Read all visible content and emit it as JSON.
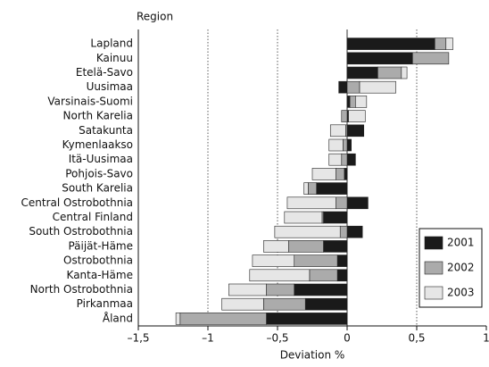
{
  "chart_data": {
    "type": "stacked-barh",
    "ylabel": "Region",
    "xlabel": "Deviation %",
    "categories": [
      "Lapland",
      "Kainuu",
      "Etelä-Savo",
      "Uusimaa",
      "Varsinais-Suomi",
      "North Karelia",
      "Satakunta",
      "Kymenlaakso",
      "Itä-Uusimaa",
      "Pohjois-Savo",
      "South Karelia",
      "Central Ostrobothnia",
      "Central Finland",
      "South Ostrobothnia",
      "Päijät-Häme",
      "Ostrobothnia",
      "Kanta-Häme",
      "North Ostrobothnia",
      "Pirkanmaa",
      "Åland"
    ],
    "series": [
      {
        "name": "2001",
        "color": "#1a1a1a",
        "values": [
          0.63,
          0.47,
          0.22,
          -0.06,
          0.02,
          0.01,
          0.12,
          0.03,
          0.06,
          -0.02,
          -0.22,
          0.15,
          -0.17,
          0.11,
          -0.17,
          -0.07,
          -0.07,
          -0.38,
          -0.3,
          -0.58
        ]
      },
      {
        "name": "2002",
        "color": "#ababab",
        "values": [
          0.08,
          0.26,
          0.17,
          0.09,
          0.04,
          -0.04,
          -0.01,
          -0.03,
          -0.04,
          -0.06,
          -0.06,
          -0.08,
          -0.01,
          -0.05,
          -0.25,
          -0.31,
          -0.2,
          -0.2,
          -0.3,
          -0.62
        ]
      },
      {
        "name": "2003",
        "color": "#e6e6e6",
        "values": [
          0.05,
          0.0,
          0.04,
          0.26,
          0.08,
          0.12,
          -0.11,
          -0.1,
          -0.09,
          -0.17,
          -0.03,
          -0.35,
          -0.27,
          -0.47,
          -0.18,
          -0.3,
          -0.43,
          -0.27,
          -0.3,
          -0.03
        ]
      }
    ],
    "xlim": [
      -1.5,
      1
    ],
    "xticks": [
      {
        "value": -1.5,
        "label": "–1,5"
      },
      {
        "value": -1,
        "label": "–1"
      },
      {
        "value": -0.5,
        "label": "–0,5"
      },
      0,
      {
        "value": 0.5,
        "label": "0,5"
      },
      1
    ],
    "grid": true,
    "legend": "lower right"
  }
}
